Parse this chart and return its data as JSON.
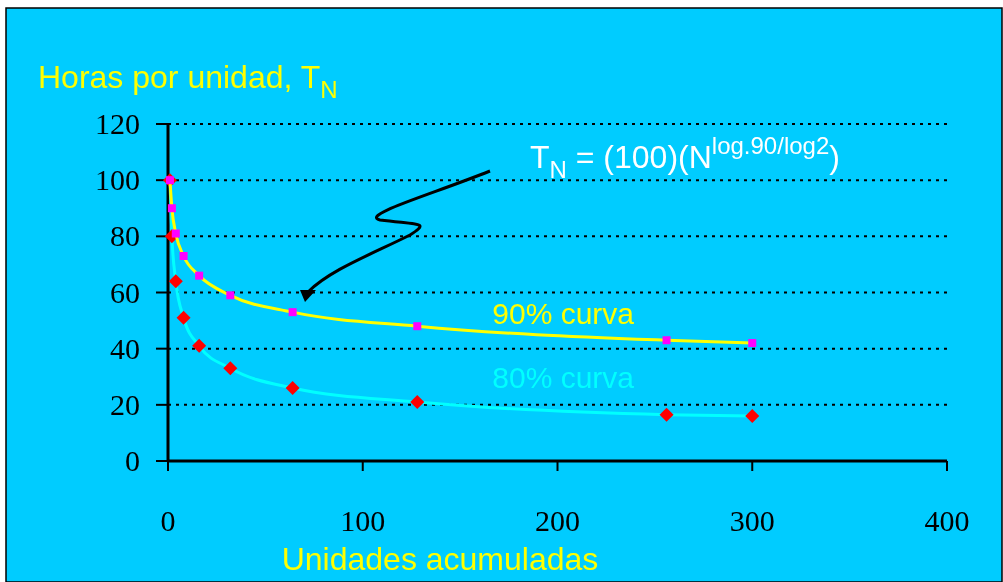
{
  "chart_data": {
    "type": "line",
    "ylabel": "Horas por unidad, T$_{N}$",
    "xlabel": "Unidades acumuladas",
    "annotations": [
      "T$_{N}$ = (100)(N$^{log.90/log2}$)"
    ],
    "xlim": [
      0,
      400
    ],
    "xticks": [
      0,
      100,
      200,
      300,
      400
    ],
    "ylim": [
      0,
      120
    ],
    "yticks": [
      0,
      20,
      40,
      60,
      80,
      100,
      120
    ],
    "grid": "y",
    "series": [
      {
        "name": "90% curva",
        "color": "#ffff00",
        "marker": "square",
        "x": [
          1,
          2,
          4,
          8,
          16,
          32,
          64,
          128,
          256,
          300
        ],
        "values": [
          100,
          90,
          81,
          73,
          66,
          59,
          53,
          48,
          43,
          42
        ]
      },
      {
        "name": "80% curva",
        "color": "#00ffff",
        "marker": "diamond",
        "x": [
          1,
          2,
          4,
          8,
          16,
          32,
          64,
          128,
          256,
          300
        ],
        "values": [
          100,
          80,
          64,
          51,
          41,
          33,
          26,
          21,
          16.5,
          16
        ]
      }
    ]
  }
}
